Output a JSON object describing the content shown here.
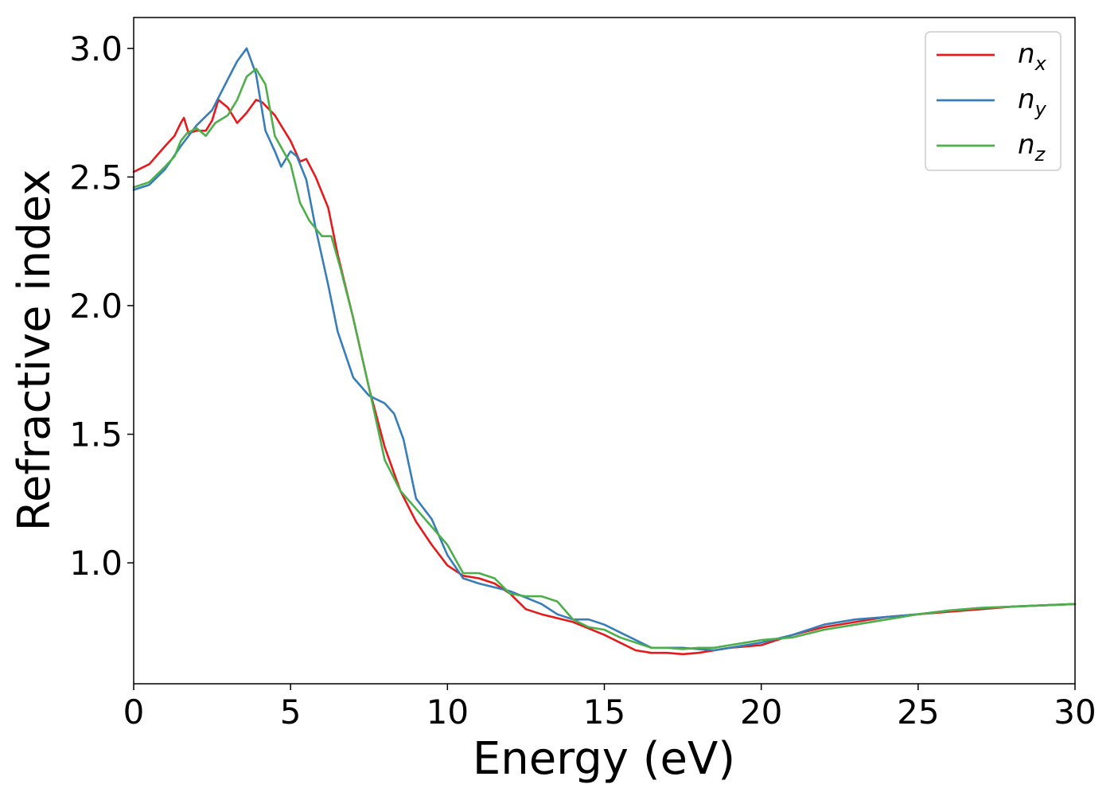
{
  "chart_data": {
    "type": "line",
    "xlabel": "Energy (eV)",
    "ylabel": "Refractive index",
    "xlim": [
      0,
      30
    ],
    "ylim": [
      0.53,
      3.12
    ],
    "xticks": [
      "0",
      "5",
      "10",
      "15",
      "20",
      "25",
      "30"
    ],
    "yticks": [
      "1.0",
      "1.5",
      "2.0",
      "2.5",
      "3.0"
    ],
    "grid": false,
    "legend_position": "top-right",
    "series": [
      {
        "name": "n",
        "subscript": "x",
        "color": "#e41a1c",
        "x": [
          0,
          0.5,
          1.0,
          1.3,
          1.5,
          1.6,
          1.75,
          2.0,
          2.3,
          2.5,
          2.7,
          3.0,
          3.3,
          3.6,
          3.9,
          4.1,
          4.5,
          5.0,
          5.3,
          5.5,
          5.8,
          6.2,
          6.5,
          7.0,
          7.5,
          8.0,
          8.5,
          9.0,
          9.5,
          10.0,
          10.5,
          11.0,
          11.5,
          12.0,
          12.5,
          13.0,
          14.0,
          15.0,
          15.5,
          16.0,
          16.5,
          17.0,
          17.5,
          18.0,
          18.5,
          19.0,
          20.0,
          21.0,
          22.0,
          23.0,
          24.0,
          25.0,
          26.0,
          27.0,
          28.0,
          29.0,
          30.0
        ],
        "y": [
          2.52,
          2.55,
          2.62,
          2.66,
          2.71,
          2.73,
          2.67,
          2.68,
          2.68,
          2.72,
          2.8,
          2.77,
          2.71,
          2.75,
          2.8,
          2.79,
          2.74,
          2.64,
          2.56,
          2.57,
          2.5,
          2.38,
          2.2,
          1.95,
          1.68,
          1.45,
          1.28,
          1.16,
          1.07,
          0.99,
          0.95,
          0.94,
          0.92,
          0.88,
          0.82,
          0.8,
          0.77,
          0.72,
          0.69,
          0.66,
          0.65,
          0.65,
          0.645,
          0.65,
          0.66,
          0.67,
          0.68,
          0.72,
          0.75,
          0.77,
          0.79,
          0.8,
          0.81,
          0.82,
          0.83,
          0.835,
          0.84
        ]
      },
      {
        "name": "n",
        "subscript": "y",
        "color": "#377eb8",
        "x": [
          0,
          0.5,
          1.0,
          1.5,
          2.0,
          2.5,
          3.0,
          3.3,
          3.6,
          3.9,
          4.2,
          4.5,
          4.7,
          5.0,
          5.2,
          5.5,
          5.8,
          6.2,
          6.5,
          7.0,
          7.5,
          8.0,
          8.3,
          8.6,
          9.0,
          9.5,
          10.0,
          10.5,
          11.0,
          12.0,
          13.0,
          13.5,
          14.0,
          14.5,
          15.0,
          15.5,
          16.0,
          16.5,
          17.0,
          17.5,
          18.0,
          18.5,
          19.0,
          20.0,
          21.0,
          22.0,
          23.0,
          24.0,
          25.0,
          26.0,
          27.0,
          28.0,
          29.0,
          30.0
        ],
        "y": [
          2.45,
          2.47,
          2.53,
          2.62,
          2.7,
          2.76,
          2.88,
          2.95,
          3.0,
          2.9,
          2.68,
          2.6,
          2.54,
          2.6,
          2.58,
          2.49,
          2.3,
          2.08,
          1.9,
          1.72,
          1.65,
          1.62,
          1.58,
          1.48,
          1.25,
          1.17,
          1.03,
          0.94,
          0.92,
          0.89,
          0.84,
          0.8,
          0.78,
          0.78,
          0.76,
          0.73,
          0.7,
          0.67,
          0.67,
          0.67,
          0.665,
          0.66,
          0.67,
          0.69,
          0.72,
          0.76,
          0.78,
          0.79,
          0.8,
          0.815,
          0.825,
          0.83,
          0.835,
          0.84
        ]
      },
      {
        "name": "n",
        "subscript": "z",
        "color": "#4daf4a",
        "x": [
          0,
          0.5,
          1.0,
          1.3,
          1.5,
          1.7,
          2.0,
          2.3,
          2.6,
          3.0,
          3.3,
          3.6,
          3.9,
          4.2,
          4.5,
          5.0,
          5.3,
          5.6,
          6.0,
          6.3,
          6.6,
          7.0,
          7.5,
          8.0,
          8.5,
          9.0,
          9.5,
          10.0,
          10.5,
          11.0,
          11.5,
          12.0,
          12.5,
          13.0,
          13.5,
          14.0,
          14.5,
          15.0,
          15.5,
          16.0,
          16.5,
          17.0,
          17.5,
          18.0,
          18.5,
          19.0,
          19.5,
          20.0,
          21.0,
          22.0,
          23.0,
          24.0,
          25.0,
          26.0,
          27.0,
          28.0,
          29.0,
          30.0
        ],
        "y": [
          2.46,
          2.48,
          2.54,
          2.58,
          2.64,
          2.67,
          2.69,
          2.66,
          2.71,
          2.74,
          2.8,
          2.89,
          2.92,
          2.86,
          2.66,
          2.55,
          2.4,
          2.33,
          2.27,
          2.27,
          2.14,
          1.95,
          1.68,
          1.4,
          1.28,
          1.21,
          1.14,
          1.07,
          0.96,
          0.96,
          0.94,
          0.88,
          0.87,
          0.87,
          0.85,
          0.78,
          0.75,
          0.74,
          0.71,
          0.69,
          0.67,
          0.67,
          0.665,
          0.67,
          0.67,
          0.68,
          0.69,
          0.7,
          0.71,
          0.74,
          0.76,
          0.78,
          0.8,
          0.815,
          0.825,
          0.83,
          0.835,
          0.84
        ]
      }
    ]
  }
}
